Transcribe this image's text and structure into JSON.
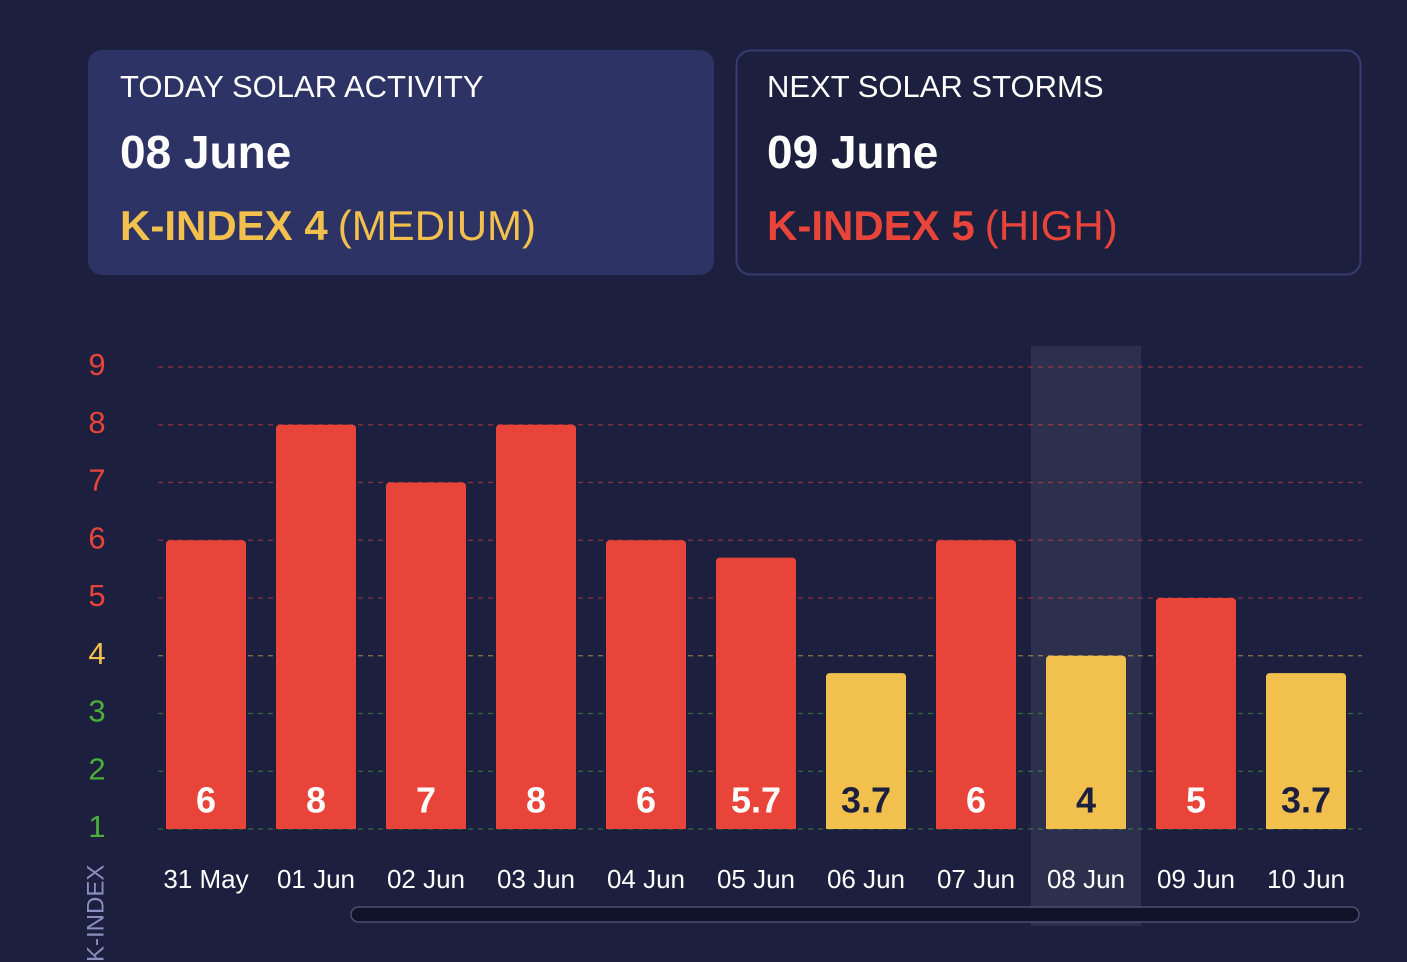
{
  "cards": [
    {
      "label": "TODAY SOLAR ACTIVITY",
      "date": "08 June",
      "kindex": "K-INDEX 4",
      "level": "(MEDIUM)",
      "color": "#f2c04d"
    },
    {
      "label": "NEXT SOLAR STORMS",
      "date": "09 June",
      "kindex": "K-INDEX 5",
      "level": "(HIGH)",
      "color": "#e8443a"
    }
  ],
  "chart_data": {
    "type": "bar",
    "y_label": "K-INDEX",
    "categories": [
      "31 May",
      "01 Jun",
      "02 Jun",
      "03 Jun",
      "04 Jun",
      "05 Jun",
      "06 Jun",
      "07 Jun",
      "08 Jun",
      "09 Jun",
      "10 Jun"
    ],
    "values": [
      6,
      8,
      7,
      8,
      6,
      5.7,
      3.7,
      6,
      4,
      5,
      3.7
    ],
    "colors": [
      "#e8443a",
      "#e8443a",
      "#e8443a",
      "#e8443a",
      "#e8443a",
      "#e8443a",
      "#f2c04d",
      "#e8443a",
      "#f2c04d",
      "#e8443a",
      "#f2c04d"
    ],
    "ylim": [
      1,
      9
    ],
    "yticks": [
      1,
      2,
      3,
      4,
      5,
      6,
      7,
      8,
      9
    ],
    "ytick_colors": [
      "#4caf3a",
      "#4caf3a",
      "#4caf3a",
      "#f2c04d",
      "#e8443a",
      "#e8443a",
      "#e8443a",
      "#e8443a",
      "#e8443a"
    ],
    "grid": true,
    "highlight": "08 Jun"
  }
}
